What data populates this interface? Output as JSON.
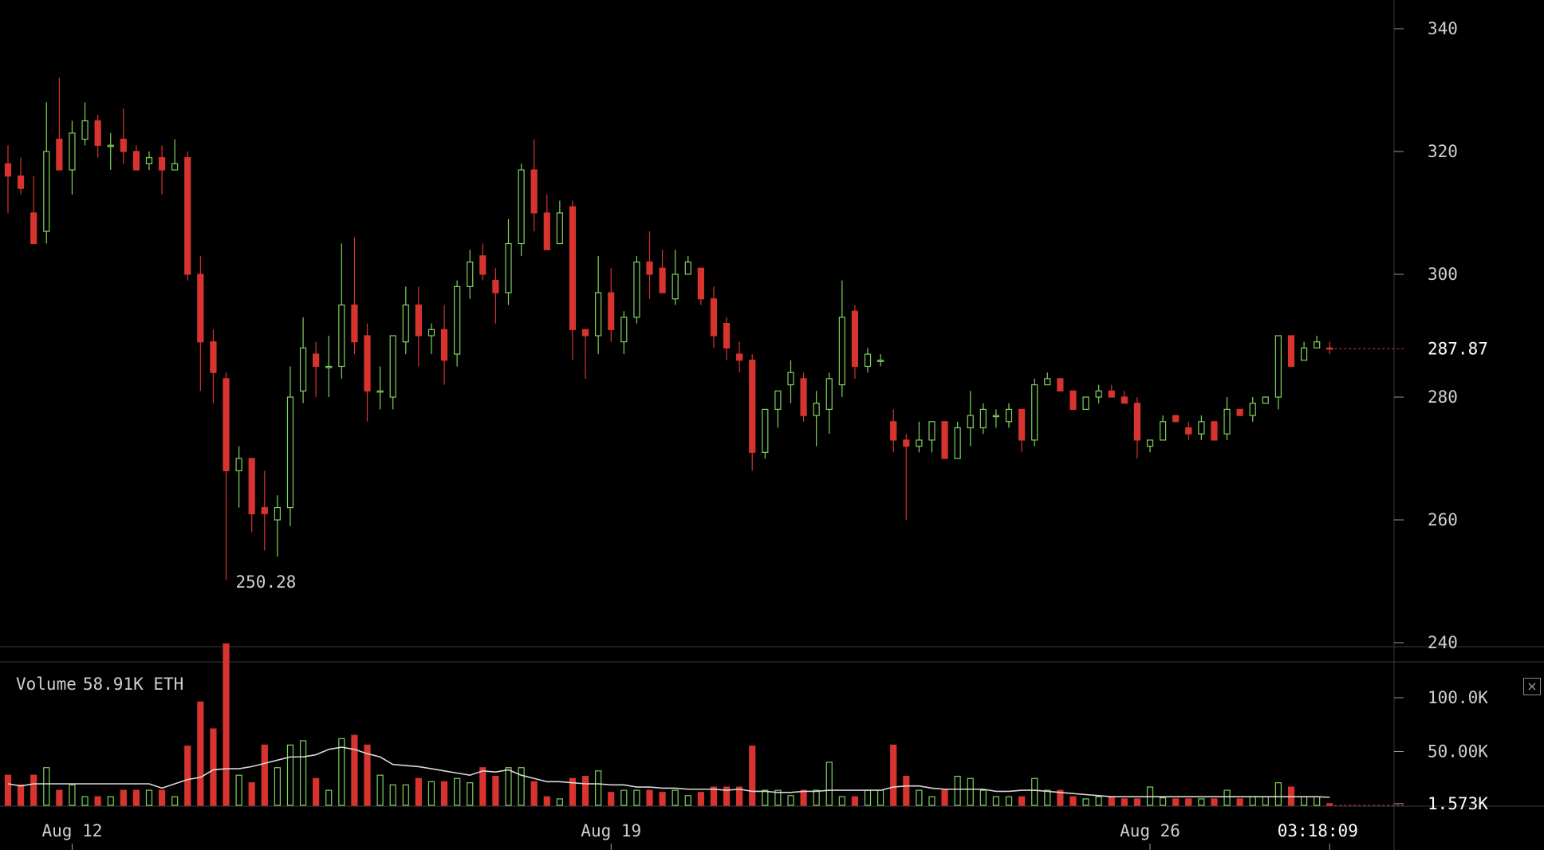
{
  "colors": {
    "background": "#000000",
    "up": "#7ed35f",
    "down": "#d7342f",
    "grid": "#3a3a3a",
    "text": "#cfcfcf",
    "ma_line": "#d8d8d8"
  },
  "volume_legend": {
    "label": "Volume",
    "value": "58.91K ETH"
  },
  "close_button": {
    "icon": "close-icon",
    "glyph": "×"
  },
  "time_readout": "03:18:09",
  "chart_data": [
    {
      "type": "candlestick",
      "title": "",
      "y_ticks": [
        "340",
        "320",
        "300",
        "280",
        "260",
        "240"
      ],
      "ylim": [
        239,
        344
      ],
      "current_price": "287.87",
      "low_annotation": {
        "text": "250.28",
        "candle_index": 17
      },
      "x_labels": [
        {
          "text": "Aug 12",
          "candle_index": 5
        },
        {
          "text": "Aug 19",
          "candle_index": 47
        },
        {
          "text": "Aug 26",
          "candle_index": 89
        }
      ],
      "candles": [
        {
          "o": 318,
          "h": 321,
          "l": 310,
          "c": 316
        },
        {
          "o": 316,
          "h": 319,
          "l": 313,
          "c": 314
        },
        {
          "o": 310,
          "h": 316,
          "l": 305,
          "c": 305
        },
        {
          "o": 307,
          "h": 328,
          "l": 305,
          "c": 320
        },
        {
          "o": 322,
          "h": 332,
          "l": 317,
          "c": 317
        },
        {
          "o": 317,
          "h": 325,
          "l": 313,
          "c": 323
        },
        {
          "o": 322,
          "h": 328,
          "l": 321,
          "c": 325
        },
        {
          "o": 325,
          "h": 326,
          "l": 319,
          "c": 321
        },
        {
          "o": 321,
          "h": 323,
          "l": 317,
          "c": 321
        },
        {
          "o": 322,
          "h": 327,
          "l": 318,
          "c": 320
        },
        {
          "o": 320,
          "h": 321,
          "l": 317,
          "c": 317
        },
        {
          "o": 318,
          "h": 320,
          "l": 317,
          "c": 319
        },
        {
          "o": 319,
          "h": 321,
          "l": 313,
          "c": 317
        },
        {
          "o": 317,
          "h": 322,
          "l": 317,
          "c": 318
        },
        {
          "o": 319,
          "h": 320,
          "l": 299,
          "c": 300
        },
        {
          "o": 300,
          "h": 303,
          "l": 281,
          "c": 289
        },
        {
          "o": 289,
          "h": 291,
          "l": 279,
          "c": 284
        },
        {
          "o": 283,
          "h": 284,
          "l": 250.28,
          "c": 268
        },
        {
          "o": 268,
          "h": 272,
          "l": 262,
          "c": 270
        },
        {
          "o": 270,
          "h": 270,
          "l": 258,
          "c": 261
        },
        {
          "o": 262,
          "h": 268,
          "l": 255,
          "c": 261
        },
        {
          "o": 260,
          "h": 264,
          "l": 254,
          "c": 262
        },
        {
          "o": 262,
          "h": 285,
          "l": 259,
          "c": 280
        },
        {
          "o": 281,
          "h": 293,
          "l": 279,
          "c": 288
        },
        {
          "o": 287,
          "h": 289,
          "l": 280,
          "c": 285
        },
        {
          "o": 285,
          "h": 290,
          "l": 280,
          "c": 285
        },
        {
          "o": 285,
          "h": 305,
          "l": 283,
          "c": 295
        },
        {
          "o": 295,
          "h": 306,
          "l": 287,
          "c": 289
        },
        {
          "o": 290,
          "h": 292,
          "l": 276,
          "c": 281
        },
        {
          "o": 281,
          "h": 285,
          "l": 278,
          "c": 281
        },
        {
          "o": 280,
          "h": 290,
          "l": 278,
          "c": 290
        },
        {
          "o": 289,
          "h": 298,
          "l": 287,
          "c": 295
        },
        {
          "o": 295,
          "h": 298,
          "l": 285,
          "c": 290
        },
        {
          "o": 290,
          "h": 292,
          "l": 287,
          "c": 291
        },
        {
          "o": 291,
          "h": 295,
          "l": 282,
          "c": 286
        },
        {
          "o": 287,
          "h": 299,
          "l": 285,
          "c": 298
        },
        {
          "o": 298,
          "h": 304,
          "l": 296,
          "c": 302
        },
        {
          "o": 303,
          "h": 305,
          "l": 299,
          "c": 300
        },
        {
          "o": 299,
          "h": 301,
          "l": 292,
          "c": 297
        },
        {
          "o": 297,
          "h": 309,
          "l": 295,
          "c": 305
        },
        {
          "o": 305,
          "h": 318,
          "l": 303,
          "c": 317
        },
        {
          "o": 317,
          "h": 322,
          "l": 307,
          "c": 310
        },
        {
          "o": 310,
          "h": 313,
          "l": 304,
          "c": 304
        },
        {
          "o": 305,
          "h": 312,
          "l": 305,
          "c": 310
        },
        {
          "o": 311,
          "h": 312,
          "l": 286,
          "c": 291
        },
        {
          "o": 291,
          "h": 291,
          "l": 283,
          "c": 290
        },
        {
          "o": 290,
          "h": 303,
          "l": 287,
          "c": 297
        },
        {
          "o": 297,
          "h": 301,
          "l": 289,
          "c": 291
        },
        {
          "o": 289,
          "h": 294,
          "l": 287,
          "c": 293
        },
        {
          "o": 293,
          "h": 303,
          "l": 292,
          "c": 302
        },
        {
          "o": 302,
          "h": 307,
          "l": 296,
          "c": 300
        },
        {
          "o": 301,
          "h": 304,
          "l": 297,
          "c": 297
        },
        {
          "o": 296,
          "h": 304,
          "l": 295,
          "c": 300
        },
        {
          "o": 300,
          "h": 303,
          "l": 300,
          "c": 302
        },
        {
          "o": 301,
          "h": 301,
          "l": 295,
          "c": 296
        },
        {
          "o": 296,
          "h": 298,
          "l": 288,
          "c": 290
        },
        {
          "o": 292,
          "h": 293,
          "l": 286,
          "c": 288
        },
        {
          "o": 287,
          "h": 289,
          "l": 284,
          "c": 286
        },
        {
          "o": 286,
          "h": 287,
          "l": 268,
          "c": 271
        },
        {
          "o": 271,
          "h": 277,
          "l": 270,
          "c": 278
        },
        {
          "o": 278,
          "h": 281,
          "l": 275,
          "c": 281
        },
        {
          "o": 282,
          "h": 286,
          "l": 279,
          "c": 284
        },
        {
          "o": 283,
          "h": 284,
          "l": 276,
          "c": 277
        },
        {
          "o": 277,
          "h": 281,
          "l": 272,
          "c": 279
        },
        {
          "o": 278,
          "h": 284,
          "l": 274,
          "c": 283
        },
        {
          "o": 282,
          "h": 299,
          "l": 280,
          "c": 293
        },
        {
          "o": 294,
          "h": 295,
          "l": 283,
          "c": 285
        },
        {
          "o": 285,
          "h": 288,
          "l": 284,
          "c": 287
        },
        {
          "o": 286,
          "h": 287,
          "l": 285,
          "c": 286
        },
        {
          "o": 276,
          "h": 278,
          "l": 271,
          "c": 273
        },
        {
          "o": 273,
          "h": 274,
          "l": 260,
          "c": 272
        },
        {
          "o": 272,
          "h": 276,
          "l": 271,
          "c": 273
        },
        {
          "o": 273,
          "h": 276,
          "l": 271,
          "c": 276
        },
        {
          "o": 276,
          "h": 276,
          "l": 270,
          "c": 270
        },
        {
          "o": 270,
          "h": 276,
          "l": 270,
          "c": 275
        },
        {
          "o": 275,
          "h": 281,
          "l": 272,
          "c": 277
        },
        {
          "o": 275,
          "h": 279,
          "l": 274,
          "c": 278
        },
        {
          "o": 277,
          "h": 278,
          "l": 275,
          "c": 277
        },
        {
          "o": 276,
          "h": 279,
          "l": 275,
          "c": 278
        },
        {
          "o": 278,
          "h": 278,
          "l": 271,
          "c": 273
        },
        {
          "o": 273,
          "h": 283,
          "l": 272,
          "c": 282
        },
        {
          "o": 282,
          "h": 284,
          "l": 282,
          "c": 283
        },
        {
          "o": 283,
          "h": 283,
          "l": 281,
          "c": 281
        },
        {
          "o": 281,
          "h": 281,
          "l": 278,
          "c": 278
        },
        {
          "o": 278,
          "h": 280,
          "l": 278,
          "c": 280
        },
        {
          "o": 280,
          "h": 282,
          "l": 279,
          "c": 281
        },
        {
          "o": 281,
          "h": 282,
          "l": 280,
          "c": 280
        },
        {
          "o": 280,
          "h": 281,
          "l": 279,
          "c": 279
        },
        {
          "o": 279,
          "h": 280,
          "l": 270,
          "c": 273
        },
        {
          "o": 272,
          "h": 273,
          "l": 271,
          "c": 273
        },
        {
          "o": 273,
          "h": 277,
          "l": 273,
          "c": 276
        },
        {
          "o": 277,
          "h": 277,
          "l": 276,
          "c": 276
        },
        {
          "o": 275,
          "h": 276,
          "l": 273,
          "c": 274
        },
        {
          "o": 274,
          "h": 277,
          "l": 273,
          "c": 276
        },
        {
          "o": 276,
          "h": 276,
          "l": 273,
          "c": 273
        },
        {
          "o": 274,
          "h": 280,
          "l": 273,
          "c": 278
        },
        {
          "o": 278,
          "h": 278,
          "l": 277,
          "c": 277
        },
        {
          "o": 277,
          "h": 280,
          "l": 276,
          "c": 279
        },
        {
          "o": 279,
          "h": 280,
          "l": 279,
          "c": 280
        },
        {
          "o": 280,
          "h": 290,
          "l": 278,
          "c": 290
        },
        {
          "o": 290,
          "h": 290,
          "l": 285,
          "c": 285
        },
        {
          "o": 286,
          "h": 289,
          "l": 286,
          "c": 288
        },
        {
          "o": 288,
          "h": 290,
          "l": 288,
          "c": 289
        },
        {
          "o": 288,
          "h": 289,
          "l": 287,
          "c": 287.87
        }
      ]
    },
    {
      "type": "bar",
      "title": "",
      "series_name": "Volume",
      "y_ticks": [
        "100.0K",
        "50.00K",
        "1.573K"
      ],
      "ylim": [
        0,
        150000
      ],
      "values": [
        28000,
        19000,
        28000,
        35000,
        14000,
        19000,
        8000,
        8000,
        8000,
        14000,
        14000,
        14000,
        14000,
        8000,
        55000,
        96000,
        71000,
        150000,
        28000,
        21000,
        56000,
        35000,
        56000,
        60000,
        25000,
        14000,
        62000,
        65000,
        56000,
        28000,
        19000,
        19000,
        25000,
        22000,
        22000,
        25000,
        21000,
        35000,
        27000,
        35000,
        35000,
        22000,
        8000,
        6000,
        25000,
        27000,
        32000,
        12000,
        14000,
        14000,
        14000,
        12000,
        14000,
        9000,
        12000,
        17000,
        17000,
        17000,
        55000,
        14000,
        14000,
        9000,
        14000,
        14000,
        40000,
        8000,
        8000,
        14000,
        14000,
        56000,
        27000,
        14000,
        8000,
        14000,
        27000,
        25000,
        14000,
        8000,
        8000,
        8000,
        25000,
        14000,
        14000,
        8000,
        6000,
        8000,
        8000,
        6000,
        6000,
        17000,
        7000,
        6000,
        6000,
        6000,
        6000,
        14000,
        6000,
        8000,
        8000,
        21000,
        17000,
        8000,
        8000,
        1573
      ],
      "moving_average": [
        20000,
        18000,
        20000,
        20000,
        20000,
        20000,
        20000,
        20000,
        20000,
        20000,
        20000,
        20000,
        16000,
        20000,
        24000,
        26000,
        33000,
        34000,
        34000,
        36000,
        39000,
        42000,
        45000,
        45000,
        47000,
        52000,
        54000,
        52000,
        48000,
        45000,
        38000,
        37000,
        36000,
        34000,
        32000,
        30000,
        28000,
        32000,
        31000,
        33000,
        28000,
        25000,
        22000,
        22000,
        21000,
        20000,
        20000,
        19000,
        19000,
        17000,
        17000,
        16000,
        16000,
        15000,
        15000,
        15000,
        14000,
        15000,
        13000,
        13000,
        12000,
        12000,
        13000,
        13000,
        14000,
        14000,
        14000,
        14000,
        14000,
        17000,
        18000,
        18000,
        16000,
        15000,
        15000,
        15000,
        15000,
        13000,
        13000,
        14000,
        14000,
        13000,
        12000,
        11000,
        10000,
        9000,
        8000,
        8000,
        8000,
        8000,
        8000,
        8000,
        8000,
        8000,
        8000,
        8000,
        8000,
        8000,
        8000,
        8000,
        8000,
        8000,
        8000,
        7500
      ],
      "current_value_label": "1.573K"
    }
  ]
}
